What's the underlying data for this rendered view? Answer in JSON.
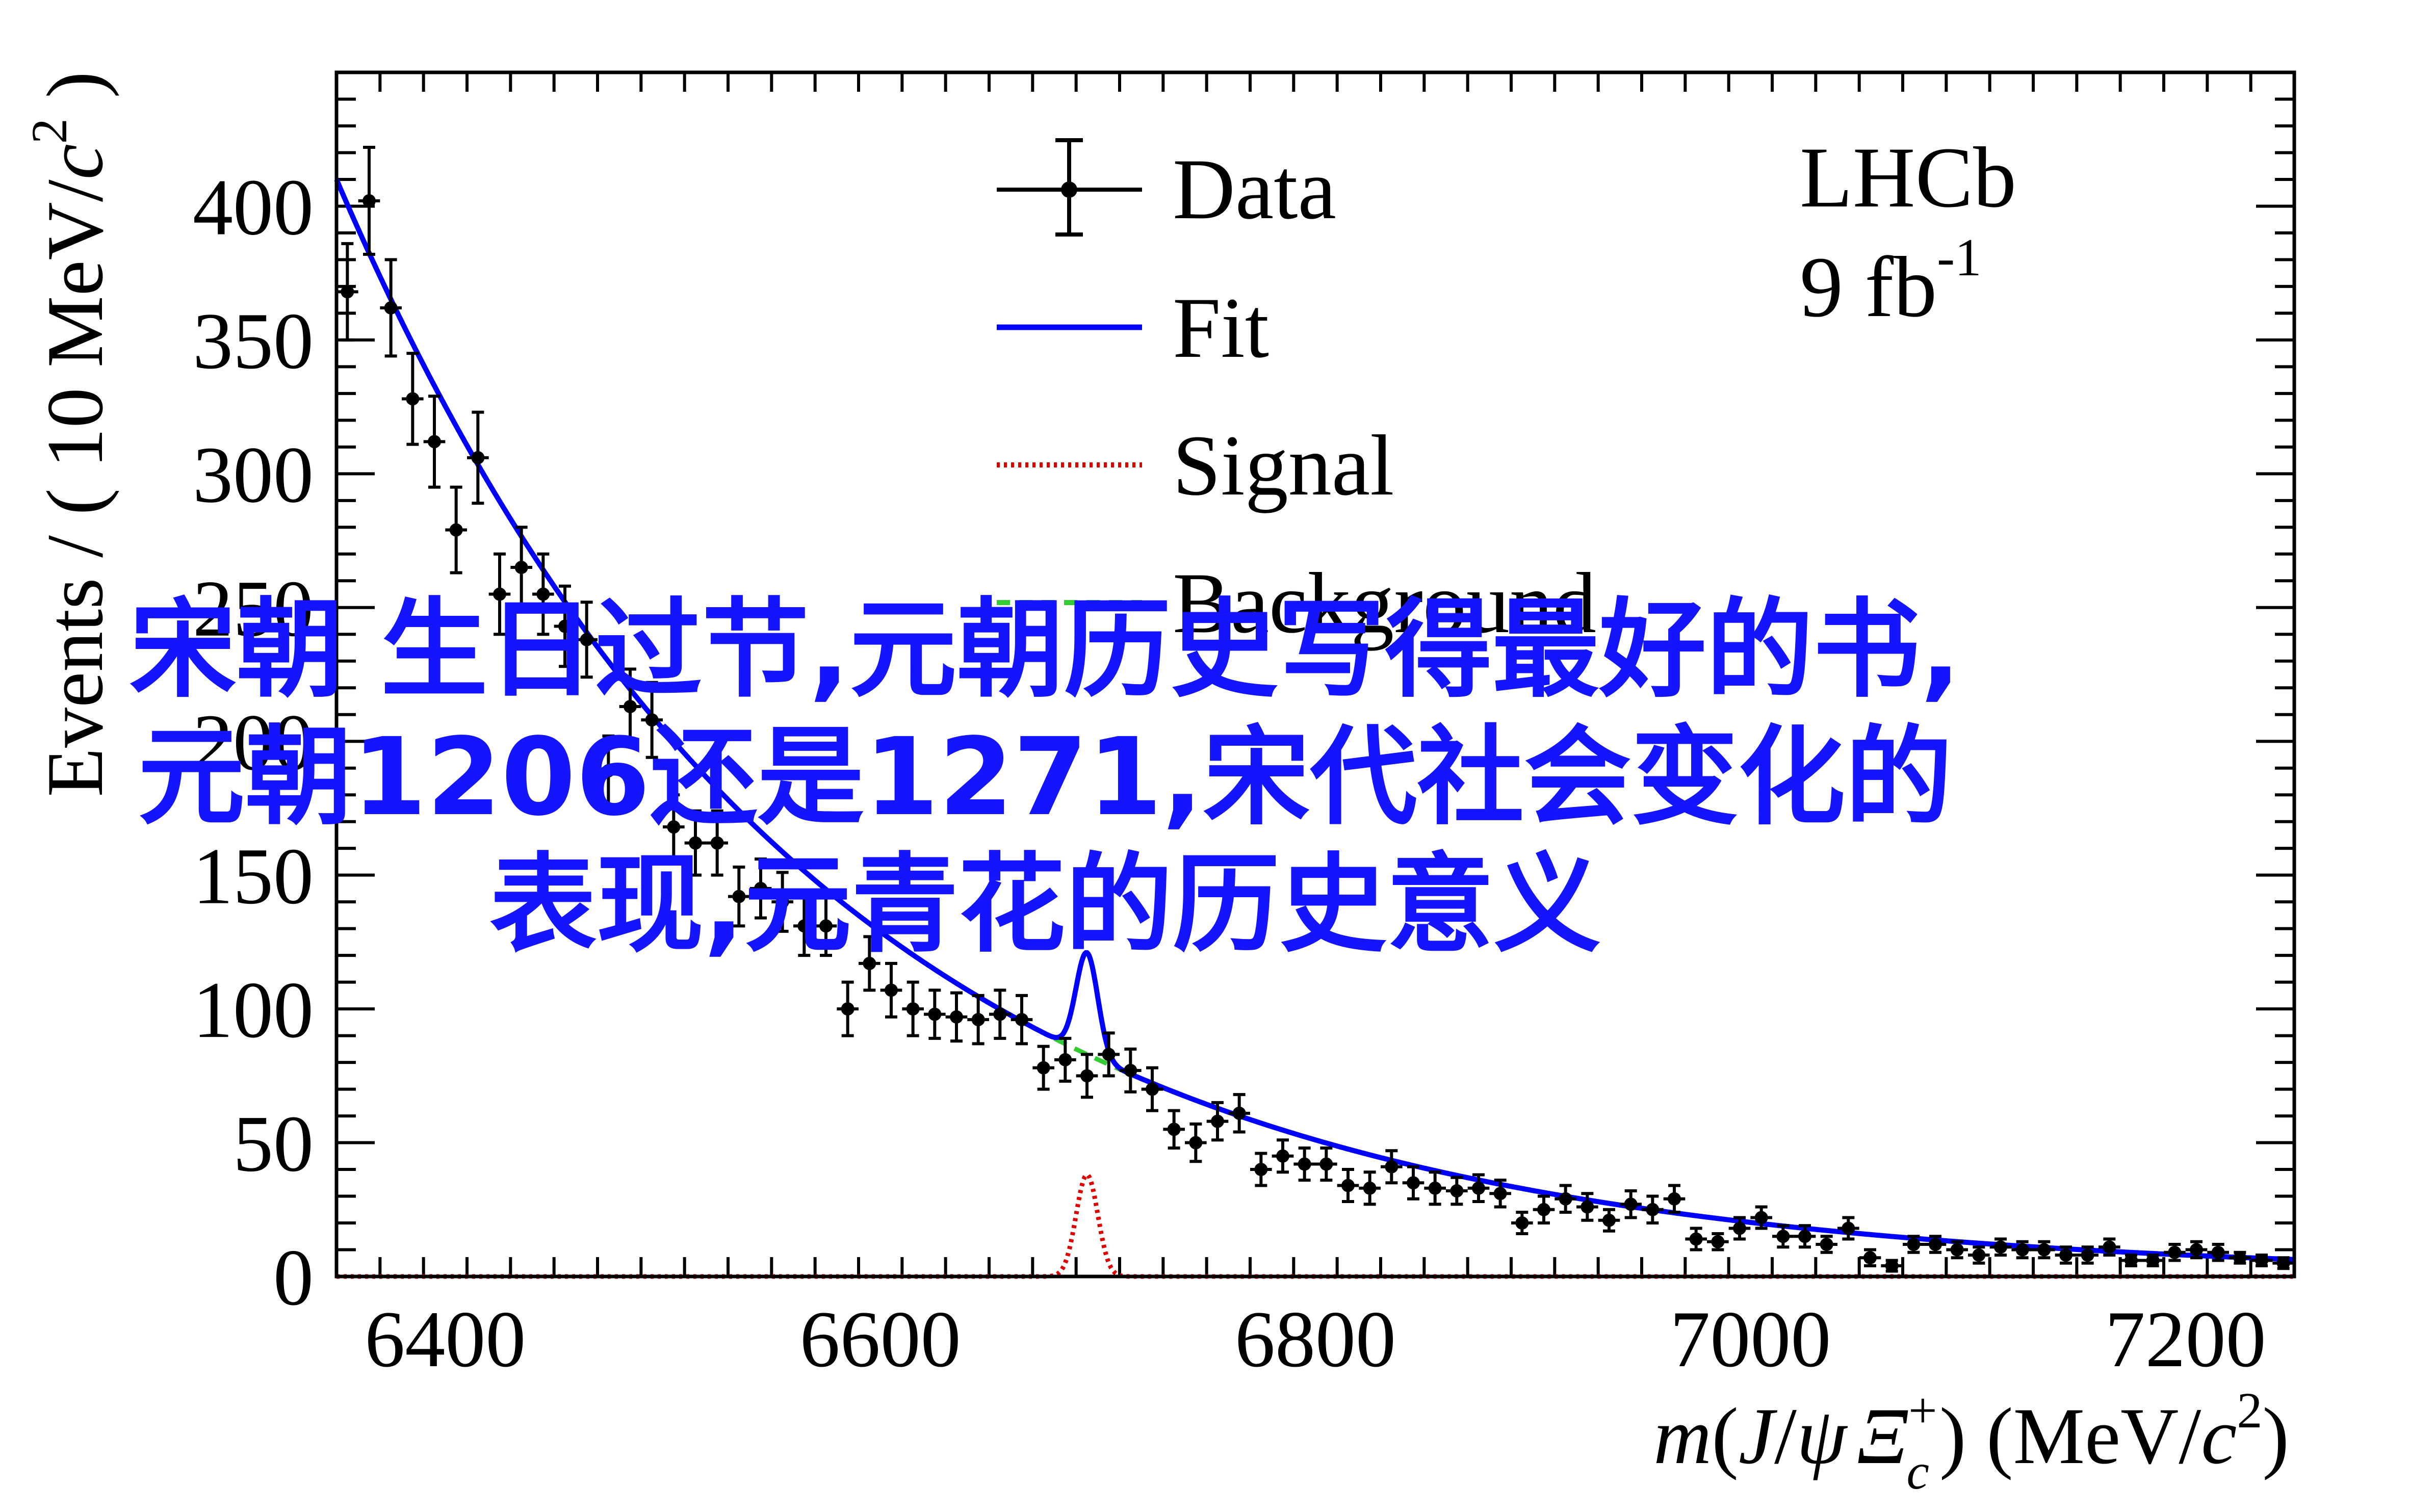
{
  "chart_data": {
    "type": "scatter",
    "xlabel": "m(J/ψ Ξc+) (MeV/c2)",
    "xlabel_parts": {
      "m": "m",
      "open": "(",
      "j": "J",
      "slash": "/",
      "psi": "ψ",
      "xi": "Ξ",
      "sub": "c",
      "sup": "+",
      "close": ") (MeV/",
      "c": "c",
      "c_sup": "2",
      "end": ")"
    },
    "ylabel": "Events / ( 10 MeV/c2 )",
    "ylabel_parts": {
      "main": "Events / ( 10 MeV/",
      "c": "c",
      "c_sup": "2",
      "end": " )"
    },
    "xlim": [
      6350,
      7250
    ],
    "ylim": [
      0,
      450
    ],
    "x_ticks": [
      6400,
      6600,
      6800,
      7000,
      7200
    ],
    "y_ticks": [
      0,
      50,
      100,
      150,
      200,
      250,
      300,
      350,
      400
    ],
    "x_tick_labels": [
      "6400",
      "6600",
      "6800",
      "7000",
      "7200"
    ],
    "y_tick_labels": [
      "0",
      "50",
      "100",
      "150",
      "200",
      "250",
      "300",
      "350",
      "400"
    ],
    "experiment": "LHCb",
    "luminosity": "9 fb",
    "luminosity_sup": "-1",
    "legend_position": "top-center",
    "legend": [
      {
        "label": "Data",
        "style": "errorbar",
        "color": "#000000"
      },
      {
        "label": "Fit",
        "style": "solid",
        "color": "#0000ff"
      },
      {
        "label": "Signal",
        "style": "dotted",
        "color": "#e00000"
      },
      {
        "label": "Background",
        "style": "dashed",
        "color": "#33cc33"
      }
    ],
    "series": [
      {
        "name": "Data",
        "bin_half_width": 5,
        "x": [
          6355,
          6365,
          6375,
          6385,
          6395,
          6405,
          6415,
          6425,
          6435,
          6445,
          6455,
          6465,
          6475,
          6485,
          6495,
          6505,
          6515,
          6525,
          6535,
          6545,
          6555,
          6565,
          6575,
          6585,
          6595,
          6605,
          6615,
          6625,
          6635,
          6645,
          6655,
          6665,
          6675,
          6685,
          6695,
          6705,
          6715,
          6725,
          6735,
          6745,
          6755,
          6765,
          6775,
          6785,
          6795,
          6805,
          6815,
          6825,
          6835,
          6845,
          6855,
          6865,
          6875,
          6885,
          6895,
          6905,
          6915,
          6925,
          6935,
          6945,
          6955,
          6965,
          6975,
          6985,
          6995,
          7005,
          7015,
          7025,
          7035,
          7045,
          7055,
          7065,
          7075,
          7085,
          7095,
          7105,
          7115,
          7125,
          7135,
          7145,
          7155,
          7165,
          7175,
          7185,
          7195,
          7205,
          7215,
          7225,
          7235,
          7245
        ],
        "y": [
          368,
          402,
          362,
          328,
          312,
          279,
          306,
          255,
          265,
          255,
          243,
          238,
          189,
          213,
          208,
          168,
          162,
          162,
          142,
          145,
          140,
          131,
          131,
          100,
          117,
          107,
          100,
          98,
          97,
          96,
          98,
          96,
          78,
          81,
          75,
          83,
          77,
          70,
          55,
          50,
          58,
          61,
          40,
          45,
          42,
          42,
          34,
          33,
          41,
          35,
          33,
          32,
          33,
          31,
          20,
          25,
          29,
          26,
          21,
          27,
          25,
          29,
          14,
          13,
          18,
          22,
          15,
          15,
          12,
          18,
          7,
          4,
          12,
          12,
          10,
          8,
          11,
          10,
          10,
          8,
          8,
          11,
          6,
          6,
          9,
          10,
          9,
          7,
          6,
          5
        ],
        "y_err": [
          18,
          20,
          18,
          17,
          17,
          16,
          17,
          15,
          15,
          15,
          15,
          14,
          13,
          14,
          14,
          12,
          12,
          12,
          11,
          11,
          11,
          11,
          11,
          10,
          10,
          10,
          10,
          9,
          9,
          9,
          9,
          9,
          8,
          8,
          8,
          8,
          8,
          8,
          7,
          7,
          7,
          7,
          6,
          6,
          6,
          6,
          6,
          6,
          6,
          6,
          6,
          5,
          5,
          5,
          4,
          5,
          5,
          5,
          4,
          5,
          5,
          5,
          4,
          3,
          4,
          4,
          4,
          4,
          3,
          4,
          3,
          2,
          3,
          3,
          3,
          3,
          3,
          3,
          3,
          3,
          3,
          3,
          2,
          2,
          3,
          3,
          3,
          2,
          2,
          2
        ]
      },
      {
        "name": "Fit",
        "curve": "background + signal gaussian",
        "bkg_norm": 410,
        "bkg_slope_per_MeV": 0.00463,
        "signal_mean": 6695,
        "signal_sigma": 5,
        "signal_amplitude": 38
      },
      {
        "name": "Signal",
        "curve": "gaussian",
        "mean": 6695,
        "sigma": 5,
        "amplitude": 38
      },
      {
        "name": "Background",
        "curve": "exponential",
        "norm": 410,
        "slope_per_MeV": 0.00463
      }
    ]
  },
  "overlay_text": {
    "line1": "宋朝 生日过节,元朝历史写得最好的书,",
    "line2": "元朝1206还是1271,宋代社会变化的",
    "line3": "表现,元青花的历史意义",
    "color": "#1414ff"
  }
}
